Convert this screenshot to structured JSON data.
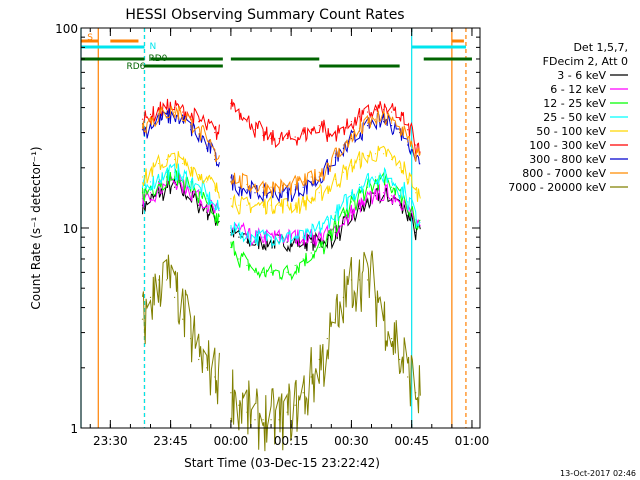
{
  "chart_data": {
    "type": "line",
    "title": "HESSI Observing Summary Count Rates",
    "xlabel": "Start Time (03-Dec-15 23:22:42)",
    "ylabel": "Count Rate (s⁻¹ detector⁻¹)",
    "y_scale": "log",
    "ylim": [
      1,
      100
    ],
    "xlim": [
      "23:22:42",
      "01:02:00"
    ],
    "x_ticks": [
      "23:30",
      "23:45",
      "00:00",
      "00:15",
      "00:30",
      "00:45",
      "01:00"
    ],
    "y_ticks": [
      "1",
      "10",
      "100"
    ],
    "legend_header": [
      "Det 1,5,7,",
      "FDecim 2, Att 0"
    ],
    "legend_position": "right",
    "timestamp": "13-Oct-2017 02:46",
    "flags": {
      "S": {
        "label": "S",
        "color": "#ff8000"
      },
      "N": {
        "label": "N",
        "color": "#00e5ee"
      },
      "RD0": {
        "label": "RD0",
        "color": "#006400"
      },
      "RD6": {
        "label": "RD6",
        "color": "#006400"
      }
    },
    "x": [
      "23:38",
      "23:40",
      "23:42",
      "23:44",
      "23:46",
      "23:48",
      "23:50",
      "23:52",
      "23:54",
      "23:56",
      "23:58",
      "00:00",
      "00:02",
      "00:04",
      "00:06",
      "00:08",
      "00:10",
      "00:12",
      "00:14",
      "00:16",
      "00:18",
      "00:20",
      "00:22",
      "00:24",
      "00:26",
      "00:28",
      "00:30",
      "00:32",
      "00:34",
      "00:36",
      "00:38",
      "00:40",
      "00:42",
      "00:44",
      "00:46"
    ],
    "series": [
      {
        "name": "3 - 6 keV",
        "color": "#000000",
        "values": [
          13,
          14,
          15,
          16,
          16,
          15,
          14,
          13,
          12,
          11,
          null,
          9.5,
          9,
          8.5,
          8.5,
          8.5,
          8.5,
          8.5,
          8.5,
          8.5,
          8.5,
          8.5,
          8.5,
          8.8,
          9.5,
          10.5,
          11.5,
          12.5,
          13.5,
          14.5,
          14.5,
          14,
          13,
          11.5,
          9.5
        ]
      },
      {
        "name": "6 - 12 keV",
        "color": "#ff00ff",
        "values": [
          14,
          15,
          16,
          17,
          17,
          16,
          15,
          14,
          13,
          12,
          null,
          10,
          9.5,
          9,
          9,
          9,
          9,
          9,
          9,
          9,
          9,
          9,
          9,
          9.3,
          10,
          11,
          12,
          13,
          14,
          15,
          15,
          14.5,
          13.5,
          12,
          10
        ]
      },
      {
        "name": "12 - 25 keV",
        "color": "#00ff00",
        "values": [
          15,
          16,
          17,
          18,
          18,
          17,
          16,
          14,
          12.5,
          11,
          null,
          8,
          7,
          6.5,
          6,
          6,
          6,
          6,
          6,
          6.5,
          7,
          7.5,
          8,
          9,
          10.5,
          12,
          13.5,
          15,
          16,
          17,
          17,
          16,
          14.5,
          12.5,
          10
        ]
      },
      {
        "name": "25 - 50 keV",
        "color": "#00ffff",
        "values": [
          16,
          17,
          18,
          19,
          19,
          18,
          17,
          15.5,
          14,
          12.5,
          null,
          10,
          9.5,
          9,
          9,
          9,
          9,
          9,
          9,
          9,
          9,
          9.5,
          10,
          11,
          12,
          13.5,
          15,
          16.5,
          17.5,
          18,
          18,
          17,
          15.5,
          13.5,
          11
        ]
      },
      {
        "name": "50 - 100 keV",
        "color": "#ffd700",
        "values": [
          18,
          19.5,
          21,
          22,
          22,
          21,
          20,
          18.5,
          17,
          15.5,
          null,
          14,
          13,
          13,
          13,
          13,
          13,
          13,
          13,
          13,
          13.5,
          14,
          15,
          16,
          17.5,
          19,
          20.5,
          22,
          23,
          23.5,
          23.5,
          22,
          20,
          17.5,
          15
        ]
      },
      {
        "name": "100 - 300 keV",
        "color": "#ff0000",
        "values": [
          35,
          37,
          39,
          40,
          40,
          38,
          36,
          34,
          32,
          30,
          null,
          42,
          38,
          34,
          31,
          29,
          28,
          28,
          28,
          28.5,
          29.5,
          31,
          32.5,
          29,
          30,
          32,
          34,
          36,
          38,
          39,
          39,
          38,
          35,
          31,
          26
        ]
      },
      {
        "name": "300 - 800 keV",
        "color": "#0000cd",
        "values": [
          31,
          33,
          35,
          36,
          36,
          34,
          31,
          28,
          25,
          22,
          null,
          17,
          16,
          15.5,
          15,
          15,
          15,
          15,
          15,
          15.5,
          16,
          17,
          18,
          20,
          22.5,
          25,
          28,
          30.5,
          32.5,
          34,
          34,
          32.5,
          30,
          26,
          22
        ]
      },
      {
        "name": "800 - 7000 keV",
        "color": "#ff8c00",
        "values": [
          33,
          35,
          37,
          38,
          38,
          36,
          33,
          29.5,
          26,
          23,
          null,
          18,
          17,
          16.5,
          16,
          16,
          16,
          16,
          16,
          16.5,
          17,
          18,
          19,
          21,
          23.5,
          26,
          29,
          31.5,
          33.5,
          35,
          35,
          33.5,
          31,
          27,
          23
        ]
      },
      {
        "name": "7000 - 20000 keV",
        "color": "#808000",
        "values": [
          3.5,
          4.5,
          5.5,
          5.5,
          4.5,
          3.5,
          2.8,
          2.2,
          2.0,
          1.8,
          null,
          1.5,
          1.3,
          1.2,
          1.1,
          1.1,
          1.1,
          1.1,
          1.2,
          1.3,
          1.5,
          1.8,
          2.2,
          2.8,
          3.5,
          4.5,
          5.5,
          5.5,
          5.5,
          4.5,
          3.5,
          2.8,
          2.2,
          1.8,
          1.5
        ]
      }
    ]
  }
}
